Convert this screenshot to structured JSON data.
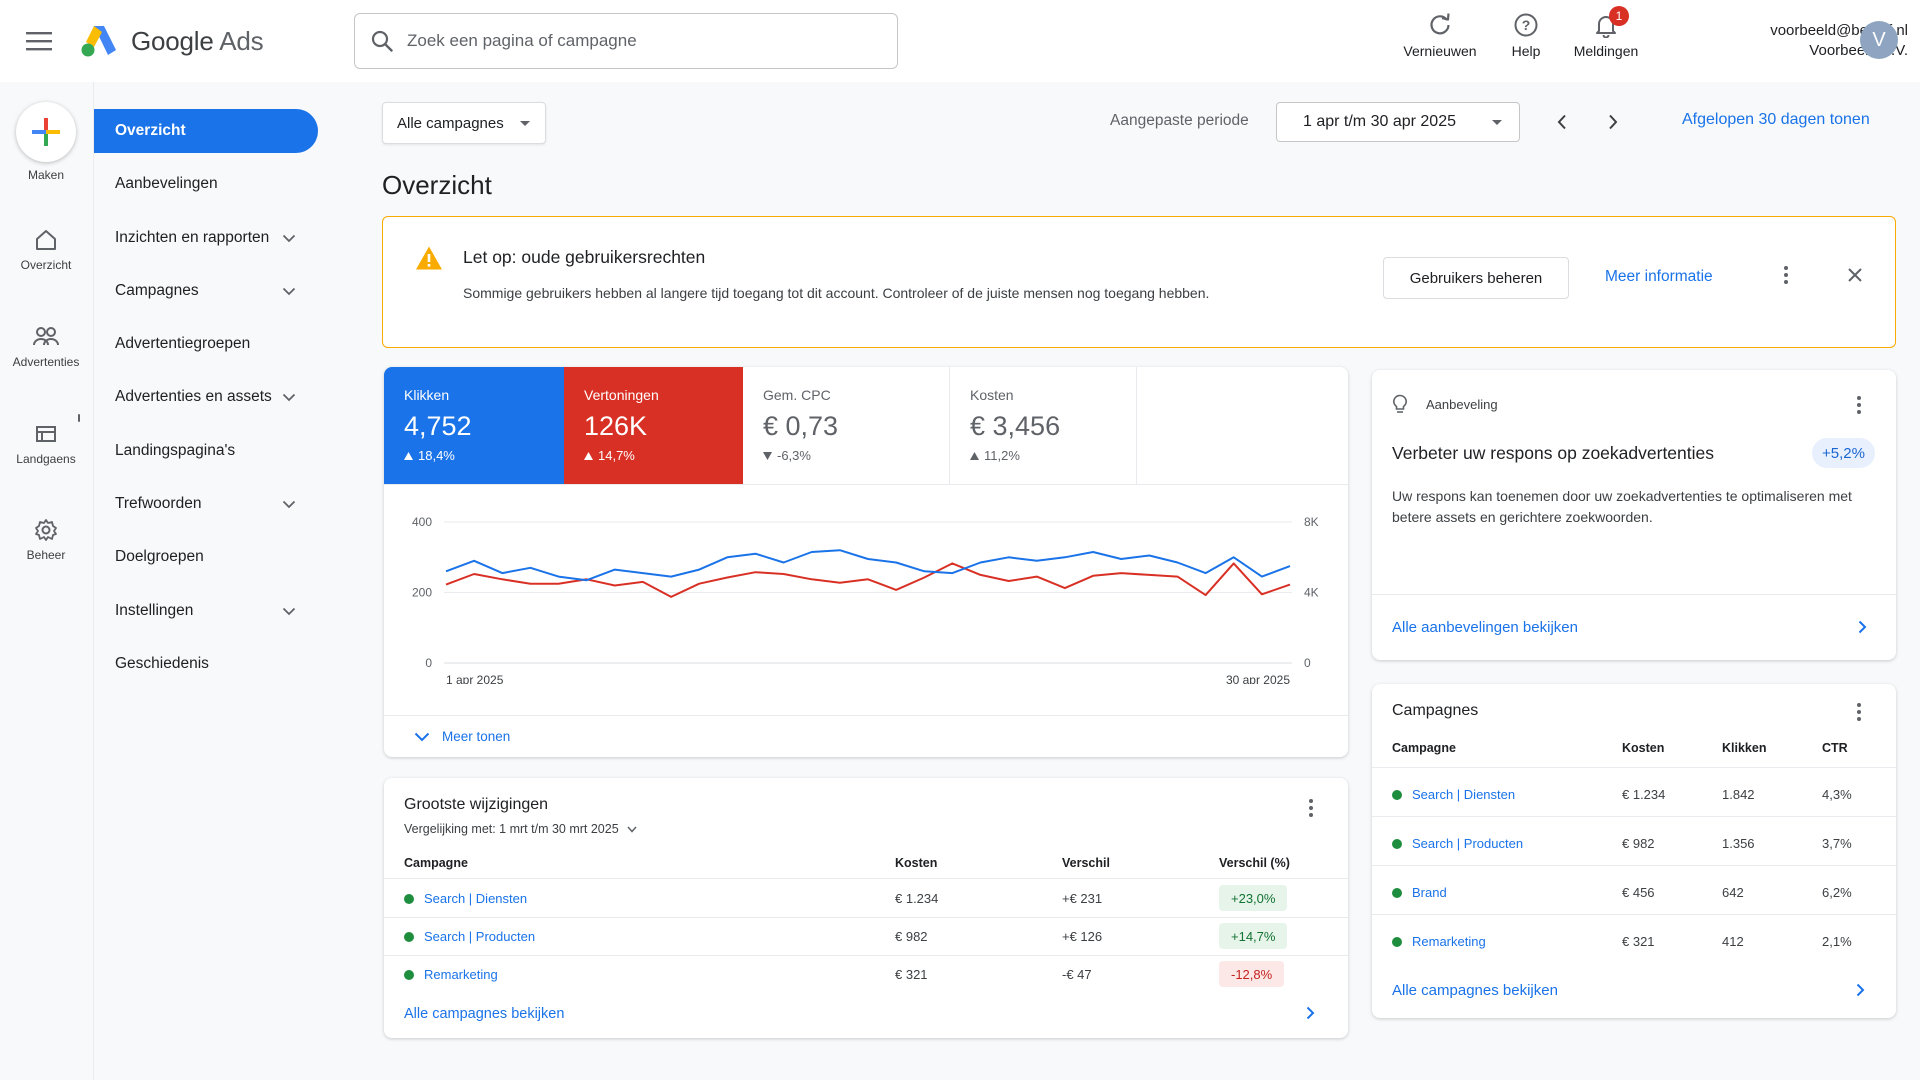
{
  "app": {
    "title": "Google Ads",
    "logo_word": "Google",
    "logo_product": "Ads"
  },
  "search": {
    "placeholder": "Zoek een pagina of campagne"
  },
  "header_actions": [
    {
      "label": "Vernieuwen",
      "icon": "refresh-icon"
    },
    {
      "label": "Help",
      "icon": "help-icon"
    },
    {
      "label": "Meldingen",
      "icon": "bell-icon",
      "badge": "1"
    }
  ],
  "account": {
    "email": "voorbeeld@bedrijf.nl",
    "company": "Voorbeeld B.V.",
    "avatar_letter": "V"
  },
  "rail": [
    {
      "label": "Maken",
      "icon": "plus-icon"
    },
    {
      "label": "Overzicht",
      "icon": "home-icon"
    },
    {
      "label": "Advertenties",
      "icon": "ads-icon"
    },
    {
      "label": "Landgaens",
      "icon": "landing-icon"
    },
    {
      "label": "Beheer",
      "icon": "gear-icon"
    }
  ],
  "sidenav": [
    {
      "label": "Overzicht",
      "active": true,
      "chevron": false
    },
    {
      "label": "Aanbevelingen",
      "chevron": false
    },
    {
      "label": "Inzichten en rapporten",
      "chevron": true
    },
    {
      "label": "Campagnes",
      "chevron": true
    },
    {
      "label": "Advertentiegroepen",
      "chevron": false
    },
    {
      "label": "Advertenties en assets",
      "chevron": true
    },
    {
      "label": "Landingspagina's",
      "chevron": false
    },
    {
      "label": "Trefwoorden",
      "chevron": true
    },
    {
      "label": "Doelgroepen",
      "chevron": false
    },
    {
      "label": "Instellingen",
      "chevron": true
    },
    {
      "label": "Geschiedenis",
      "chevron": false
    }
  ],
  "filters": {
    "campaign_filter": "Alle campagnes",
    "period_label": "Aangepaste periode",
    "date_range": "1 apr t/m 30 apr 2025",
    "last_30_link": "Afgelopen 30 dagen tonen"
  },
  "page_title": "Overzicht",
  "alert": {
    "title": "Let op: oude gebruikersrechten",
    "body": "Sommige gebruikers hebben al langere tijd toegang tot dit account. Controleer of de juiste mensen nog toegang hebben.",
    "manage_button": "Gebruikers beheren",
    "info_link": "Meer informatie",
    "accent": "#f9ab00"
  },
  "kpis": [
    {
      "label": "Klikken",
      "value": "4,752",
      "delta": "18,4%",
      "direction": "up",
      "bg": "#1a73e8"
    },
    {
      "label": "Vertoningen",
      "value": "126K",
      "delta": "14,7%",
      "direction": "up",
      "bg": "#d93025"
    },
    {
      "label": "Gem. CPC",
      "value": "€ 0,73",
      "delta": "-6,3%",
      "direction": "down",
      "bg": "#ffffff"
    },
    {
      "label": "Kosten",
      "value": "€ 3,456",
      "delta": "11,2%",
      "direction": "up",
      "bg": "#ffffff"
    }
  ],
  "chart_data": {
    "type": "line",
    "x_start_label": "1 apr 2025",
    "x_end_label": "30 apr 2025",
    "y_left_ticks": [
      "400",
      "200",
      "0"
    ],
    "y_right_ticks": [
      "8K",
      "4K",
      "0"
    ],
    "ylim_left": [
      0,
      400
    ],
    "ylim_right": [
      0,
      8000
    ],
    "grid": true,
    "series": [
      {
        "axis": "left",
        "color": "#1a73e8",
        "values": [
          260,
          290,
          255,
          270,
          245,
          235,
          265,
          255,
          245,
          265,
          300,
          310,
          285,
          315,
          320,
          295,
          285,
          260,
          255,
          285,
          300,
          290,
          300,
          315,
          295,
          305,
          285,
          255,
          300,
          245,
          275
        ]
      },
      {
        "axis": "right",
        "color": "#d93025",
        "values": [
          4450,
          5050,
          4750,
          4500,
          4500,
          4750,
          4400,
          4600,
          3750,
          4500,
          4850,
          5150,
          5050,
          4750,
          4550,
          4750,
          4150,
          4850,
          5650,
          5000,
          4650,
          4900,
          4250,
          4950,
          5100,
          5000,
          4900,
          3850,
          5650,
          3900,
          4450
        ]
      }
    ]
  },
  "chart_more": "Meer tonen",
  "changes": {
    "title": "Grootste wijzigingen",
    "comparison": "Vergelijking met: 1 mrt t/m 30 mrt 2025",
    "columns": [
      "Campagne",
      "Kosten",
      "Verschil",
      "Verschil (%)"
    ],
    "rows": [
      {
        "name": "Search | Diensten",
        "cost": "€ 1.234",
        "diff": "+€ 231",
        "pct": "+23,0%",
        "positive": true
      },
      {
        "name": "Search | Producten",
        "cost": "€ 982",
        "diff": "+€ 126",
        "pct": "+14,7%",
        "positive": true
      },
      {
        "name": "Remarketing",
        "cost": "€ 321",
        "diff": "-€ 47",
        "pct": "-12,8%",
        "positive": false
      }
    ],
    "footer_link": "Alle campagnes bekijken"
  },
  "recommendation": {
    "kicker": "Aanbeveling",
    "title": "Verbeter uw respons op zoekadvertenties",
    "badge": "+5,2%",
    "body": "Uw respons kan toenemen door uw zoekadvertenties te optimaliseren met betere assets en gerichtere zoekwoorden.",
    "footer_link": "Alle aanbevelingen bekijken"
  },
  "campaigns": {
    "title": "Campagnes",
    "columns": [
      "Campagne",
      "Kosten",
      "Klikken",
      "CTR"
    ],
    "rows": [
      {
        "name": "Search | Diensten",
        "cost": "€ 1.234",
        "clicks": "1.842",
        "ctr": "4,3%"
      },
      {
        "name": "Search | Producten",
        "cost": "€ 982",
        "clicks": "1.356",
        "ctr": "3,7%"
      },
      {
        "name": "Brand",
        "cost": "€ 456",
        "clicks": "642",
        "ctr": "6,2%"
      },
      {
        "name": "Remarketing",
        "cost": "€ 321",
        "clicks": "412",
        "ctr": "2,1%"
      }
    ],
    "footer_link": "Alle campagnes bekijken"
  }
}
